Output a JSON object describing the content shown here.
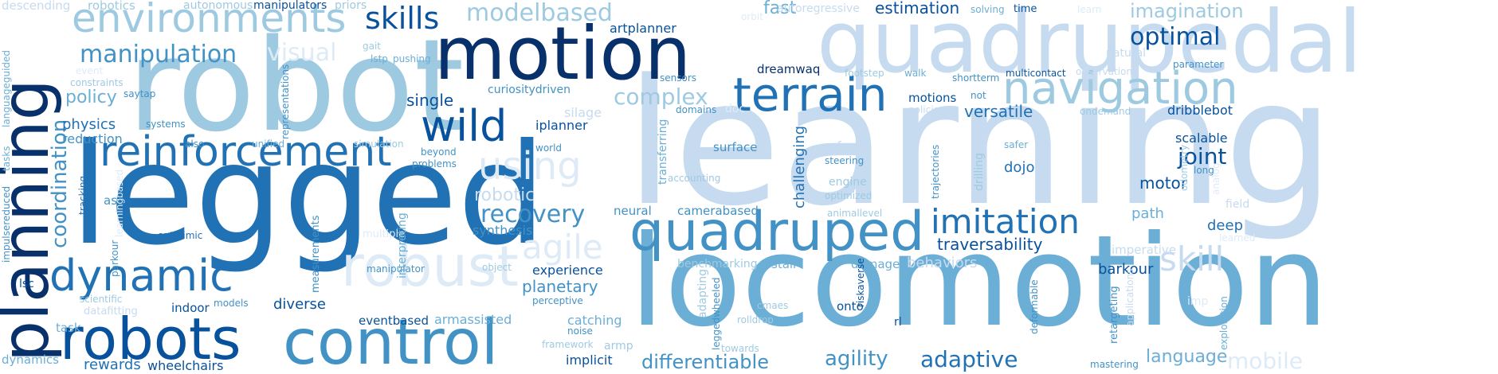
{
  "palette": {
    "darkest": "#08306b",
    "dark": "#08519c",
    "medium_dark": "#2171b5",
    "medium": "#4292c6",
    "light_medium": "#6baed6",
    "light": "#9ecae1",
    "lighter": "#c6dbef",
    "lightest": "#deebf7"
  },
  "words": [
    {
      "text": "learning",
      "color": "#c6dbef"
    },
    {
      "text": "locomotion",
      "color": "#6baed6"
    },
    {
      "text": "legged",
      "color": "#2171b5"
    },
    {
      "text": "robot",
      "color": "#9ecae1"
    },
    {
      "text": "quadrupedal",
      "color": "#c6dbef"
    },
    {
      "text": "motion",
      "color": "#08306b"
    },
    {
      "text": "planning",
      "color": "#08306b"
    },
    {
      "text": "control",
      "color": "#4292c6"
    },
    {
      "text": "robots",
      "color": "#08519c"
    },
    {
      "text": "quadruped",
      "color": "#4292c6"
    },
    {
      "text": "reinforcement",
      "color": "#2171b5"
    },
    {
      "text": "environments",
      "color": "#9ecae1"
    },
    {
      "text": "robust",
      "color": "#deebf7"
    },
    {
      "text": "dynamic",
      "color": "#2171b5"
    },
    {
      "text": "terrain",
      "color": "#2171b5"
    },
    {
      "text": "wild",
      "color": "#08519c"
    },
    {
      "text": "navigation",
      "color": "#9ecae1"
    },
    {
      "text": "skills",
      "color": "#08519c"
    },
    {
      "text": "imitation",
      "color": "#2171b5"
    },
    {
      "text": "skill",
      "color": "#c6dbef"
    },
    {
      "text": "using",
      "color": "#deebf7"
    },
    {
      "text": "agile",
      "color": "#deebf7"
    },
    {
      "text": "manipulation",
      "color": "#4292c6"
    },
    {
      "text": "modelbased",
      "color": "#9ecae1"
    },
    {
      "text": "optimal",
      "color": "#08519c"
    },
    {
      "text": "recovery",
      "color": "#4292c6"
    },
    {
      "text": "complex",
      "color": "#9ecae1"
    },
    {
      "text": "robotic",
      "color": "#c6dbef"
    },
    {
      "text": "coordination",
      "color": "#4292c6"
    },
    {
      "text": "adaptive",
      "color": "#2171b5"
    },
    {
      "text": "agility",
      "color": "#4292c6"
    },
    {
      "text": "differentiable",
      "color": "#4292c6"
    },
    {
      "text": "language",
      "color": "#6baed6"
    },
    {
      "text": "imagination",
      "color": "#9ecae1"
    },
    {
      "text": "joint",
      "color": "#08519c"
    },
    {
      "text": "mobile",
      "color": "#deebf7"
    },
    {
      "text": "visual",
      "color": "#deebf7"
    },
    {
      "text": "policy",
      "color": "#6baed6"
    },
    {
      "text": "fast",
      "color": "#6baed6"
    },
    {
      "text": "estimation",
      "color": "#08519c"
    },
    {
      "text": "single",
      "color": "#08519c"
    },
    {
      "text": "versatile",
      "color": "#2171b5"
    },
    {
      "text": "planetary",
      "color": "#4292c6"
    },
    {
      "text": "traversability",
      "color": "#08519c"
    },
    {
      "text": "rewards",
      "color": "#2171b5"
    },
    {
      "text": "wheelchairs",
      "color": "#08519c"
    },
    {
      "text": "diverse",
      "color": "#08519c"
    },
    {
      "text": "physics",
      "color": "#2171b5"
    },
    {
      "text": "reduction",
      "color": "#4292c6"
    },
    {
      "text": "motor",
      "color": "#08519c"
    },
    {
      "text": "deep",
      "color": "#2171b5"
    },
    {
      "text": "barkour",
      "color": "#08519c"
    },
    {
      "text": "path",
      "color": "#6baed6"
    },
    {
      "text": "dojo",
      "color": "#2171b5"
    },
    {
      "text": "scalable",
      "color": "#08519c"
    },
    {
      "text": "dribblebot",
      "color": "#08519c"
    },
    {
      "text": "experience",
      "color": "#08519c"
    },
    {
      "text": "catching",
      "color": "#6baed6"
    },
    {
      "text": "synthesis",
      "color": "#4292c6"
    },
    {
      "text": "iplanner",
      "color": "#08519c"
    },
    {
      "text": "curiositydriven",
      "color": "#4292c6"
    },
    {
      "text": "artplanner",
      "color": "#08519c"
    },
    {
      "text": "dreamwaq",
      "color": "#08306b"
    },
    {
      "text": "motions",
      "color": "#08519c"
    },
    {
      "text": "surface",
      "color": "#4292c6"
    },
    {
      "text": "camerabased",
      "color": "#4292c6"
    },
    {
      "text": "neural",
      "color": "#4292c6"
    },
    {
      "text": "stair",
      "color": "#6baed6"
    },
    {
      "text": "damage",
      "color": "#6baed6"
    },
    {
      "text": "behaviors",
      "color": "#c6dbef"
    },
    {
      "text": "imperative",
      "color": "#c6dbef"
    },
    {
      "text": "benchmarking",
      "color": "#9ecae1"
    },
    {
      "text": "onto",
      "color": "#08519c"
    },
    {
      "text": "rl",
      "color": "#08519c"
    },
    {
      "text": "armassisted",
      "color": "#6baed6"
    },
    {
      "text": "eventbased",
      "color": "#08519c"
    },
    {
      "text": "indoor",
      "color": "#08519c"
    },
    {
      "text": "asc",
      "color": "#4292c6"
    },
    {
      "text": "optmimic",
      "color": "#2171b5"
    },
    {
      "text": "lsc",
      "color": "#08519c"
    },
    {
      "text": "task",
      "color": "#6baed6"
    },
    {
      "text": "dynamics",
      "color": "#6baed6"
    },
    {
      "text": "robotics",
      "color": "#9ecae1"
    },
    {
      "text": "autonomous",
      "color": "#9ecae1"
    },
    {
      "text": "manipulators",
      "color": "#08519c"
    },
    {
      "text": "priors",
      "color": "#9ecae1"
    },
    {
      "text": "descending",
      "color": "#c6dbef"
    },
    {
      "text": "time",
      "color": "#08519c"
    },
    {
      "text": "solving",
      "color": "#6baed6"
    },
    {
      "text": "orbit",
      "color": "#deebf7"
    },
    {
      "text": "autoregressive",
      "color": "#c6dbef"
    },
    {
      "text": "learn",
      "color": "#deebf7"
    },
    {
      "text": "gait",
      "color": "#9ecae1"
    },
    {
      "text": "lstp",
      "color": "#6baed6"
    },
    {
      "text": "pushing",
      "color": "#6baed6"
    },
    {
      "text": "sensors",
      "color": "#4292c6"
    },
    {
      "text": "footstep",
      "color": "#9ecae1"
    },
    {
      "text": "walk",
      "color": "#6baed6"
    },
    {
      "text": "shortterm",
      "color": "#4292c6"
    },
    {
      "text": "multicontact",
      "color": "#08519c"
    },
    {
      "text": "observation",
      "color": "#c6dbef"
    },
    {
      "text": "natural",
      "color": "#c6dbef"
    },
    {
      "text": "parameter",
      "color": "#4292c6"
    },
    {
      "text": "long",
      "color": "#4292c6"
    },
    {
      "text": "saytap",
      "color": "#4292c6"
    },
    {
      "text": "systems",
      "color": "#4292c6"
    },
    {
      "text": "constraints",
      "color": "#9ecae1"
    },
    {
      "text": "event",
      "color": "#deebf7"
    },
    {
      "text": "also",
      "color": "#4292c6"
    },
    {
      "text": "unified",
      "color": "#6baed6"
    },
    {
      "text": "simulation",
      "color": "#9ecae1"
    },
    {
      "text": "beyond",
      "color": "#4292c6"
    },
    {
      "text": "problems",
      "color": "#4292c6"
    },
    {
      "text": "world",
      "color": "#4292c6"
    },
    {
      "text": "silage",
      "color": "#c6dbef"
    },
    {
      "text": "domains",
      "color": "#4292c6"
    },
    {
      "text": "doc",
      "color": "#deebf7"
    },
    {
      "text": "not",
      "color": "#4292c6"
    },
    {
      "text": "policies",
      "color": "#c6dbef"
    },
    {
      "text": "ondemand",
      "color": "#9ecae1"
    },
    {
      "text": "safer",
      "color": "#6baed6"
    },
    {
      "text": "face",
      "color": "#c6dbef"
    },
    {
      "text": "steering",
      "color": "#4292c6"
    },
    {
      "text": "engine",
      "color": "#9ecae1"
    },
    {
      "text": "optimized",
      "color": "#9ecae1"
    },
    {
      "text": "accounting",
      "color": "#9ecae1"
    },
    {
      "text": "animallevel",
      "color": "#9ecae1"
    },
    {
      "text": "tracking",
      "color": "#2171b5"
    },
    {
      "text": "parkour",
      "color": "#4292c6"
    },
    {
      "text": "multiple",
      "color": "#deebf7"
    },
    {
      "text": "manipulator",
      "color": "#4292c6"
    },
    {
      "text": "object",
      "color": "#9ecae1"
    },
    {
      "text": "perceptive",
      "color": "#4292c6"
    },
    {
      "text": "noise",
      "color": "#4292c6"
    },
    {
      "text": "implicit",
      "color": "#08519c"
    },
    {
      "text": "framework",
      "color": "#9ecae1"
    },
    {
      "text": "armp",
      "color": "#9ecae1"
    },
    {
      "text": "towards",
      "color": "#9ecae1"
    },
    {
      "text": "cmaes",
      "color": "#9ecae1"
    },
    {
      "text": "rolldrop",
      "color": "#9ecae1"
    },
    {
      "text": "mastering",
      "color": "#4292c6"
    },
    {
      "text": "field",
      "color": "#c6dbef"
    },
    {
      "text": "learned",
      "color": "#deebf7"
    },
    {
      "text": "imp",
      "color": "#deebf7"
    },
    {
      "text": "scientific",
      "color": "#9ecae1"
    },
    {
      "text": "models",
      "color": "#4292c6"
    },
    {
      "text": "datafitting",
      "color": "#c6dbef"
    },
    {
      "text": "languageguided",
      "color": "#6baed6"
    },
    {
      "text": "tasks",
      "color": "#6baed6"
    },
    {
      "text": "impulsereduced",
      "color": "#4292c6"
    },
    {
      "text": "representations",
      "color": "#4292c6"
    },
    {
      "text": "measurements",
      "color": "#4292c6"
    },
    {
      "text": "interpreting",
      "color": "#6baed6"
    },
    {
      "text": "challenging",
      "color": "#2171b5"
    },
    {
      "text": "discovery",
      "color": "#c6dbef"
    },
    {
      "text": "transferring",
      "color": "#6baed6"
    },
    {
      "text": "adapting",
      "color": "#9ecae1"
    },
    {
      "text": "leggedwheeled",
      "color": "#4292c6"
    },
    {
      "text": "riskaverse",
      "color": "#08519c"
    },
    {
      "text": "trajectories",
      "color": "#4292c6"
    },
    {
      "text": "drilling",
      "color": "#9ecae1"
    },
    {
      "text": "deformable",
      "color": "#4292c6"
    },
    {
      "text": "retargeting",
      "color": "#4292c6"
    },
    {
      "text": "applications",
      "color": "#c6dbef"
    },
    {
      "text": "odometry",
      "color": "#9ecae1"
    },
    {
      "text": "analog",
      "color": "#deebf7"
    },
    {
      "text": "exploration",
      "color": "#6baed6"
    },
    {
      "text": "learningbased",
      "color": "#deebf7"
    }
  ]
}
